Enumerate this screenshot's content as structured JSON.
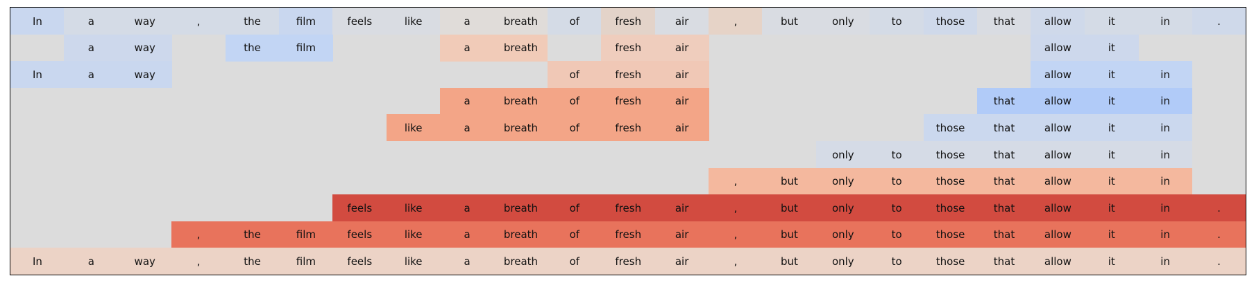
{
  "chart_data": {
    "type": "heatmap",
    "title": "",
    "tokens": [
      "In",
      "a",
      "way",
      ",",
      "the",
      "film",
      "feels",
      "like",
      "a",
      "breath",
      "of",
      "fresh",
      "air",
      ",",
      "but",
      "only",
      "to",
      "those",
      "that",
      "allow",
      "it",
      "in",
      "."
    ],
    "rows": [
      {
        "start": 0,
        "colors": [
          "#c9d7ef",
          "#d4dbe6",
          "#d4dbe6",
          "#d4dbe6",
          "#d4dbe6",
          "#c9d7ef",
          "#d9dce2",
          "#d9dce2",
          "#e0dcd9",
          "#e0dcd9",
          "#d4dbe6",
          "#e3d3c9",
          "#d9dce2",
          "#e6d3c7",
          "#d9dce2",
          "#d9dce2",
          "#d4dbe6",
          "#cfd9ea",
          "#d9dce2",
          "#cfd9ea",
          "#d4dbe6",
          "#d4dbe6",
          "#cfd9ea"
        ]
      },
      {
        "start": 1,
        "colors": [
          "#cdd8ec",
          "#cdd8ec",
          null,
          "#c2d5f4",
          "#c2d5f4",
          null,
          null,
          "#f1cbb8",
          "#f1cbb8",
          null,
          "#efcdbd",
          "#efcdbd",
          null,
          null,
          null,
          null,
          null,
          null,
          "#cdd8ec",
          "#cdd8ec",
          null,
          null
        ]
      },
      {
        "start": 0,
        "colors": [
          "#c9d7ef",
          "#c9d7ef",
          "#c9d7ef",
          null,
          null,
          null,
          null,
          null,
          null,
          null,
          "#f0c8b6",
          "#f0c8b6",
          "#f0c8b6",
          null,
          null,
          null,
          null,
          null,
          null,
          "#c2d5f4",
          "#c2d5f4",
          "#c2d5f4",
          null
        ]
      },
      {
        "start": 8,
        "colors": [
          "#f3a587",
          "#f3a587",
          "#f3a587",
          "#f3a587",
          "#f3a587",
          null,
          null,
          null,
          null,
          null,
          "#b1cbf8",
          "#b1cbf8",
          "#b1cbf8",
          "#b1cbf8"
        ]
      },
      {
        "start": 7,
        "colors": [
          "#f3a587",
          "#f3a587",
          "#f3a587",
          "#f3a587",
          "#f3a587",
          "#f3a587",
          null,
          null,
          null,
          null,
          "#cbd8ee",
          "#cbd8ee",
          "#cbd8ee",
          "#cbd8ee",
          "#cbd8ee"
        ]
      },
      {
        "start": 15,
        "colors": [
          "#d5dbe6",
          "#d5dbe6",
          "#d5dbe6",
          "#d5dbe6",
          "#d5dbe6",
          "#d5dbe6",
          "#d5dbe6"
        ]
      },
      {
        "start": 13,
        "colors": [
          "#f4b89e",
          "#f4b89e",
          "#f4b89e",
          "#f4b89e",
          "#f4b89e",
          "#f4b89e",
          "#f4b89e",
          "#f4b89e",
          "#f4b89e"
        ]
      },
      {
        "start": 6,
        "colors": [
          "#d24b40",
          "#d24b40",
          "#d24b40",
          "#d24b40",
          "#d24b40",
          "#d24b40",
          "#d24b40",
          "#d24b40",
          "#d24b40",
          "#d24b40",
          "#d24b40",
          "#d24b40",
          "#d24b40",
          "#d24b40",
          "#d24b40",
          "#d24b40",
          "#d24b40"
        ]
      },
      {
        "start": 3,
        "colors": [
          "#e8735c",
          "#e8735c",
          "#e8735c",
          "#e8735c",
          "#e8735c",
          "#e8735c",
          "#e8735c",
          "#e8735c",
          "#e8735c",
          "#e8735c",
          "#e8735c",
          "#e8735c",
          "#e8735c",
          "#e8735c",
          "#e8735c",
          "#e8735c",
          "#e8735c",
          "#e8735c",
          "#e8735c",
          "#e8735c"
        ]
      },
      {
        "start": 0,
        "colors": [
          "#ecd3c6",
          "#ecd3c6",
          "#ecd3c6",
          "#ecd3c6",
          "#ecd3c6",
          "#ecd3c6",
          "#ecd3c6",
          "#ecd3c6",
          "#ecd3c6",
          "#ecd3c6",
          "#ecd3c6",
          "#ecd3c6",
          "#ecd3c6",
          "#ecd3c6",
          "#ecd3c6",
          "#ecd3c6",
          "#ecd3c6",
          "#ecd3c6",
          "#ecd3c6",
          "#ecd3c6",
          "#ecd3c6",
          "#ecd3c6",
          "#ecd3c6"
        ]
      }
    ],
    "background_color": "#dcdcdc",
    "grid": false,
    "legend": "none"
  }
}
